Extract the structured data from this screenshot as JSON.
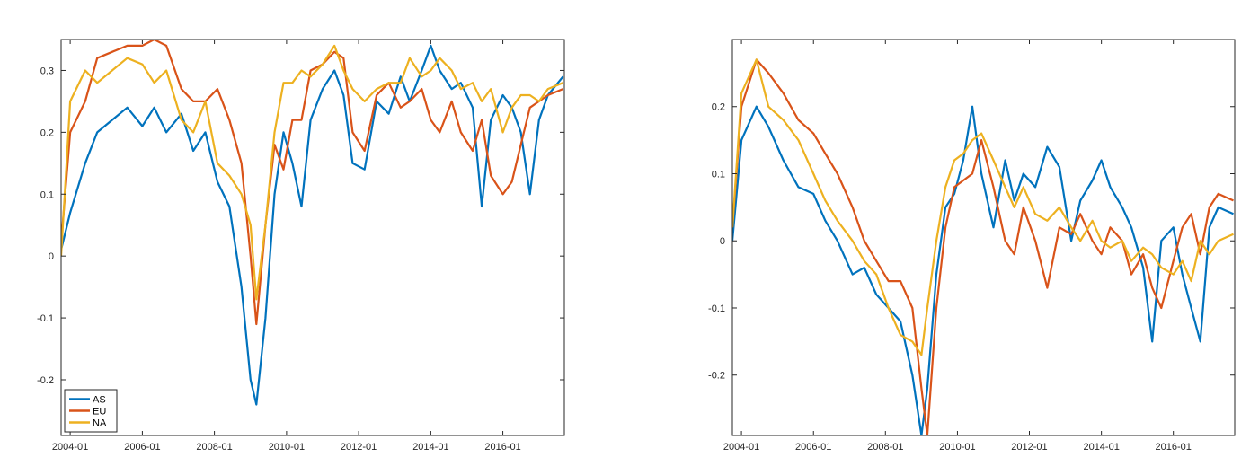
{
  "colors": {
    "AS": "#0072BD",
    "EU": "#D95319",
    "NA": "#EDB120",
    "axis": "#262626",
    "background": "#ffffff"
  },
  "chart_data": [
    {
      "type": "line",
      "title": "",
      "xlabel": "",
      "ylabel": "",
      "x_type": "date",
      "xlim": [
        "2003-10-01",
        "2017-09-15"
      ],
      "ylim": [
        -0.29,
        0.35
      ],
      "xticks": [
        "2004-01",
        "2006-01",
        "2008-01",
        "2010-01",
        "2012-01",
        "2014-01",
        "2016-01"
      ],
      "yticks": [
        0.3,
        0.2,
        0.1,
        0,
        -0.1,
        -0.2
      ],
      "ytick_labels": [
        "0.3",
        "0.2",
        "0.1",
        "0",
        "-0.1",
        "-0.2"
      ],
      "grid": false,
      "legend_position": "bottom-left",
      "series": [
        {
          "name": "AS",
          "color": "#0072BD",
          "x": [
            "2003-10-01",
            "2004-01-01",
            "2004-06-01",
            "2004-10-01",
            "2005-03-01",
            "2005-08-01",
            "2006-01-01",
            "2006-05-01",
            "2006-09-01",
            "2007-02-01",
            "2007-06-01",
            "2007-10-01",
            "2008-02-01",
            "2008-06-01",
            "2008-10-01",
            "2009-01-01",
            "2009-03-01",
            "2009-06-01",
            "2009-09-01",
            "2009-12-01",
            "2010-03-01",
            "2010-06-01",
            "2010-09-01",
            "2011-01-01",
            "2011-05-01",
            "2011-08-01",
            "2011-11-01",
            "2012-03-01",
            "2012-07-01",
            "2012-11-01",
            "2013-03-01",
            "2013-06-01",
            "2013-10-01",
            "2014-01-01",
            "2014-04-01",
            "2014-08-01",
            "2014-11-01",
            "2015-03-01",
            "2015-06-01",
            "2015-09-01",
            "2016-01-01",
            "2016-04-01",
            "2016-07-01",
            "2016-10-01",
            "2017-01-01",
            "2017-04-01",
            "2017-09-01"
          ],
          "y": [
            0.01,
            0.07,
            0.15,
            0.2,
            0.22,
            0.24,
            0.21,
            0.24,
            0.2,
            0.23,
            0.17,
            0.2,
            0.12,
            0.08,
            -0.05,
            -0.2,
            -0.24,
            -0.1,
            0.1,
            0.2,
            0.15,
            0.08,
            0.22,
            0.27,
            0.3,
            0.26,
            0.15,
            0.14,
            0.25,
            0.23,
            0.29,
            0.25,
            0.3,
            0.34,
            0.3,
            0.27,
            0.28,
            0.24,
            0.08,
            0.22,
            0.26,
            0.24,
            0.2,
            0.1,
            0.22,
            0.26,
            0.29
          ]
        },
        {
          "name": "EU",
          "color": "#D95319",
          "x": [
            "2003-10-01",
            "2004-01-01",
            "2004-06-01",
            "2004-10-01",
            "2005-03-01",
            "2005-08-01",
            "2006-01-01",
            "2006-05-01",
            "2006-09-01",
            "2007-02-01",
            "2007-06-01",
            "2007-10-01",
            "2008-02-01",
            "2008-06-01",
            "2008-10-01",
            "2009-01-01",
            "2009-03-01",
            "2009-06-01",
            "2009-09-01",
            "2009-12-01",
            "2010-03-01",
            "2010-06-01",
            "2010-09-01",
            "2011-01-01",
            "2011-05-01",
            "2011-08-01",
            "2011-11-01",
            "2012-03-01",
            "2012-07-01",
            "2012-11-01",
            "2013-03-01",
            "2013-06-01",
            "2013-10-01",
            "2014-01-01",
            "2014-04-01",
            "2014-08-01",
            "2014-11-01",
            "2015-03-01",
            "2015-06-01",
            "2015-09-01",
            "2016-01-01",
            "2016-04-01",
            "2016-07-01",
            "2016-10-01",
            "2017-01-01",
            "2017-04-01",
            "2017-09-01"
          ],
          "y": [
            0.02,
            0.2,
            0.25,
            0.32,
            0.33,
            0.34,
            0.34,
            0.35,
            0.34,
            0.27,
            0.25,
            0.25,
            0.27,
            0.22,
            0.15,
            0.0,
            -0.11,
            0.05,
            0.18,
            0.14,
            0.22,
            0.22,
            0.3,
            0.31,
            0.33,
            0.32,
            0.2,
            0.17,
            0.26,
            0.28,
            0.24,
            0.25,
            0.27,
            0.22,
            0.2,
            0.25,
            0.2,
            0.17,
            0.22,
            0.13,
            0.1,
            0.12,
            0.18,
            0.24,
            0.25,
            0.26,
            0.27
          ]
        },
        {
          "name": "NA",
          "color": "#EDB120",
          "x": [
            "2003-10-01",
            "2004-01-01",
            "2004-06-01",
            "2004-10-01",
            "2005-03-01",
            "2005-08-01",
            "2006-01-01",
            "2006-05-01",
            "2006-09-01",
            "2007-02-01",
            "2007-06-01",
            "2007-10-01",
            "2008-02-01",
            "2008-06-01",
            "2008-10-01",
            "2009-01-01",
            "2009-03-01",
            "2009-06-01",
            "2009-09-01",
            "2009-12-01",
            "2010-03-01",
            "2010-06-01",
            "2010-09-01",
            "2011-01-01",
            "2011-05-01",
            "2011-08-01",
            "2011-11-01",
            "2012-03-01",
            "2012-07-01",
            "2012-11-01",
            "2013-03-01",
            "2013-06-01",
            "2013-10-01",
            "2014-01-01",
            "2014-04-01",
            "2014-08-01",
            "2014-11-01",
            "2015-03-01",
            "2015-06-01",
            "2015-09-01",
            "2016-01-01",
            "2016-04-01",
            "2016-07-01",
            "2016-10-01",
            "2017-01-01",
            "2017-04-01",
            "2017-09-01"
          ],
          "y": [
            0.0,
            0.25,
            0.3,
            0.28,
            0.3,
            0.32,
            0.31,
            0.28,
            0.3,
            0.22,
            0.2,
            0.25,
            0.15,
            0.13,
            0.1,
            0.05,
            -0.07,
            0.05,
            0.2,
            0.28,
            0.28,
            0.3,
            0.29,
            0.31,
            0.34,
            0.3,
            0.27,
            0.25,
            0.27,
            0.28,
            0.28,
            0.32,
            0.29,
            0.3,
            0.32,
            0.3,
            0.27,
            0.28,
            0.25,
            0.27,
            0.2,
            0.24,
            0.26,
            0.26,
            0.25,
            0.27,
            0.28
          ]
        }
      ],
      "legend": [
        "AS",
        "EU",
        "NA"
      ]
    },
    {
      "type": "line",
      "title": "",
      "xlabel": "",
      "ylabel": "",
      "x_type": "date",
      "xlim": [
        "2003-10-01",
        "2017-09-15"
      ],
      "ylim": [
        -0.29,
        0.3
      ],
      "xticks": [
        "2004-01",
        "2006-01",
        "2008-01",
        "2010-01",
        "2012-01",
        "2014-01",
        "2016-01"
      ],
      "yticks": [
        0.2,
        0.1,
        0,
        -0.1,
        -0.2
      ],
      "ytick_labels": [
        "0.2",
        "0.1",
        "0",
        "-0.1",
        "-0.2"
      ],
      "grid": false,
      "series": [
        {
          "name": "AS",
          "color": "#0072BD",
          "x": [
            "2003-10-01",
            "2004-01-01",
            "2004-06-01",
            "2004-10-01",
            "2005-03-01",
            "2005-08-01",
            "2006-01-01",
            "2006-05-01",
            "2006-09-01",
            "2007-02-01",
            "2007-06-01",
            "2007-10-01",
            "2008-02-01",
            "2008-06-01",
            "2008-10-01",
            "2009-01-01",
            "2009-03-01",
            "2009-06-01",
            "2009-09-01",
            "2009-12-01",
            "2010-03-01",
            "2010-06-01",
            "2010-09-01",
            "2011-01-01",
            "2011-05-01",
            "2011-08-01",
            "2011-11-01",
            "2012-03-01",
            "2012-07-01",
            "2012-11-01",
            "2013-03-01",
            "2013-06-01",
            "2013-10-01",
            "2014-01-01",
            "2014-04-01",
            "2014-08-01",
            "2014-11-01",
            "2015-03-01",
            "2015-06-01",
            "2015-09-01",
            "2016-01-01",
            "2016-04-01",
            "2016-07-01",
            "2016-10-01",
            "2017-01-01",
            "2017-04-01",
            "2017-09-01"
          ],
          "y": [
            0.0,
            0.15,
            0.2,
            0.17,
            0.12,
            0.08,
            0.07,
            0.03,
            0.0,
            -0.05,
            -0.04,
            -0.08,
            -0.1,
            -0.12,
            -0.2,
            -0.29,
            -0.22,
            -0.05,
            0.05,
            0.07,
            0.12,
            0.2,
            0.1,
            0.02,
            0.12,
            0.06,
            0.1,
            0.08,
            0.14,
            0.11,
            0.0,
            0.06,
            0.09,
            0.12,
            0.08,
            0.05,
            0.02,
            -0.04,
            -0.15,
            0.0,
            0.02,
            -0.05,
            -0.1,
            -0.15,
            0.02,
            0.05,
            0.04
          ]
        },
        {
          "name": "EU",
          "color": "#D95319",
          "x": [
            "2003-10-01",
            "2004-01-01",
            "2004-06-01",
            "2004-10-01",
            "2005-03-01",
            "2005-08-01",
            "2006-01-01",
            "2006-05-01",
            "2006-09-01",
            "2007-02-01",
            "2007-06-01",
            "2007-10-01",
            "2008-02-01",
            "2008-06-01",
            "2008-10-01",
            "2009-01-01",
            "2009-03-01",
            "2009-06-01",
            "2009-09-01",
            "2009-12-01",
            "2010-03-01",
            "2010-06-01",
            "2010-09-01",
            "2011-01-01",
            "2011-05-01",
            "2011-08-01",
            "2011-11-01",
            "2012-03-01",
            "2012-07-01",
            "2012-11-01",
            "2013-03-01",
            "2013-06-01",
            "2013-10-01",
            "2014-01-01",
            "2014-04-01",
            "2014-08-01",
            "2014-11-01",
            "2015-03-01",
            "2015-06-01",
            "2015-09-01",
            "2016-01-01",
            "2016-04-01",
            "2016-07-01",
            "2016-10-01",
            "2017-01-01",
            "2017-04-01",
            "2017-09-01"
          ],
          "y": [
            0.02,
            0.2,
            0.27,
            0.25,
            0.22,
            0.18,
            0.16,
            0.13,
            0.1,
            0.05,
            0.0,
            -0.03,
            -0.06,
            -0.06,
            -0.1,
            -0.22,
            -0.29,
            -0.1,
            0.02,
            0.08,
            0.09,
            0.1,
            0.15,
            0.08,
            0.0,
            -0.02,
            0.05,
            0.0,
            -0.07,
            0.02,
            0.01,
            0.04,
            0.0,
            -0.02,
            0.02,
            0.0,
            -0.05,
            -0.02,
            -0.07,
            -0.1,
            -0.03,
            0.02,
            0.04,
            -0.02,
            0.05,
            0.07,
            0.06
          ]
        },
        {
          "name": "NA",
          "color": "#EDB120",
          "x": [
            "2003-10-01",
            "2004-01-01",
            "2004-06-01",
            "2004-10-01",
            "2005-03-01",
            "2005-08-01",
            "2006-01-01",
            "2006-05-01",
            "2006-09-01",
            "2007-02-01",
            "2007-06-01",
            "2007-10-01",
            "2008-02-01",
            "2008-06-01",
            "2008-10-01",
            "2009-01-01",
            "2009-03-01",
            "2009-06-01",
            "2009-09-01",
            "2009-12-01",
            "2010-03-01",
            "2010-06-01",
            "2010-09-01",
            "2011-01-01",
            "2011-05-01",
            "2011-08-01",
            "2011-11-01",
            "2012-03-01",
            "2012-07-01",
            "2012-11-01",
            "2013-03-01",
            "2013-06-01",
            "2013-10-01",
            "2014-01-01",
            "2014-04-01",
            "2014-08-01",
            "2014-11-01",
            "2015-03-01",
            "2015-06-01",
            "2015-09-01",
            "2016-01-01",
            "2016-04-01",
            "2016-07-01",
            "2016-10-01",
            "2017-01-01",
            "2017-04-01",
            "2017-09-01"
          ],
          "y": [
            0.02,
            0.22,
            0.27,
            0.2,
            0.18,
            0.15,
            0.1,
            0.06,
            0.03,
            0.0,
            -0.03,
            -0.05,
            -0.1,
            -0.14,
            -0.15,
            -0.17,
            -0.1,
            0.0,
            0.08,
            0.12,
            0.13,
            0.15,
            0.16,
            0.12,
            0.08,
            0.05,
            0.08,
            0.04,
            0.03,
            0.05,
            0.02,
            0.0,
            0.03,
            0.0,
            -0.01,
            0.0,
            -0.03,
            -0.01,
            -0.02,
            -0.04,
            -0.05,
            -0.03,
            -0.06,
            0.0,
            -0.02,
            0.0,
            0.01
          ]
        }
      ]
    }
  ]
}
